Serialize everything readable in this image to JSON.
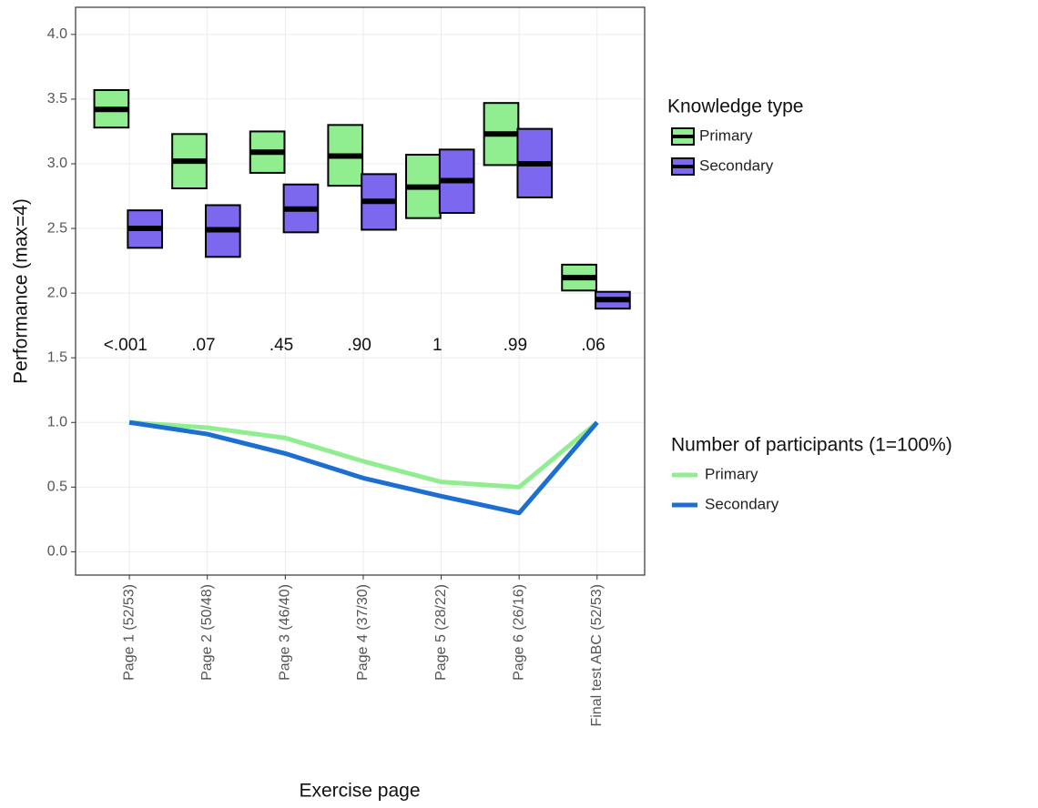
{
  "chart_data": {
    "type": "crossbar",
    "x_label": "Exercise page",
    "y_label": "Performance (max=4)",
    "categories": [
      "Page 1 (52/53)",
      "Page 2 (50/48)",
      "Page 3 (46/40)",
      "Page 4 (37/30)",
      "Page 5 (28/22)",
      "Page 6 (26/16)",
      "Final test ABC (52/53)"
    ],
    "ylim": [
      -0.18,
      4.21
    ],
    "yticks": [
      {
        "value": 0,
        "label": "0.0"
      },
      0.5,
      {
        "value": 1,
        "label": "1.0"
      },
      1.5,
      {
        "value": 2,
        "label": "2.0"
      },
      2.5,
      {
        "value": 3,
        "label": "3.0"
      },
      3.5,
      {
        "value": 4,
        "label": "4.0"
      }
    ],
    "grid": true,
    "box_legend_title": "Knowledge type",
    "series": [
      {
        "name": "Primary",
        "color": "#90ee90",
        "values": [
          3.42,
          3.02,
          3.09,
          3.06,
          2.82,
          3.23,
          2.12
        ],
        "lower": [
          3.28,
          2.81,
          2.93,
          2.83,
          2.58,
          2.99,
          2.02
        ],
        "upper": [
          3.57,
          3.23,
          3.25,
          3.3,
          3.07,
          3.47,
          2.22
        ]
      },
      {
        "name": "Secondary",
        "color": "#7b68ee",
        "values": [
          2.5,
          2.49,
          2.65,
          2.71,
          2.87,
          3.0,
          1.95
        ],
        "lower": [
          2.35,
          2.28,
          2.47,
          2.49,
          2.62,
          2.74,
          1.88
        ],
        "upper": [
          2.64,
          2.68,
          2.84,
          2.92,
          3.11,
          3.27,
          2.01
        ]
      }
    ],
    "line_legend_title": "Number of participants (1=100%)",
    "lines": [
      {
        "name": "Primary",
        "color": "#90ee90",
        "values": [
          1.0,
          0.96,
          0.88,
          0.7,
          0.54,
          0.5,
          1.0
        ]
      },
      {
        "name": "Secondary",
        "color": "#1c6fd1",
        "values": [
          1.0,
          0.91,
          0.76,
          0.57,
          0.43,
          0.3,
          1.0
        ]
      }
    ],
    "annotations": [
      "<.001",
      ".07",
      ".45",
      ".90",
      "1",
      ".99",
      ".06"
    ]
  }
}
